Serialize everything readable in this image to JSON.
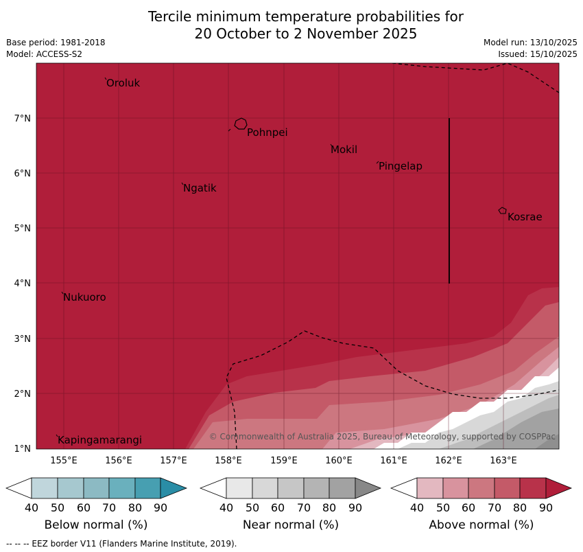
{
  "title_line1": "Tercile minimum temperature probabilities for",
  "title_line2": "20 October to 2 November 2025",
  "base_period": "Base period: 1981-2018",
  "model": "Model: ACCESS-S2",
  "model_run": "Model run: 13/10/2025",
  "issued": "Issued: 15/10/2025",
  "copyright": "© Commonwealth of Australia 2025, Bureau of Meteorology, supported by COSPPac",
  "x_ticks": [
    "155°E",
    "156°E",
    "157°E",
    "158°E",
    "159°E",
    "160°E",
    "161°E",
    "162°E",
    "163°E"
  ],
  "y_ticks": [
    "7°N",
    "6°N",
    "5°N",
    "4°N",
    "3°N",
    "2°N",
    "1°N"
  ],
  "places": [
    {
      "name": "Oroluk",
      "icon": "place-marker"
    },
    {
      "name": "Pohnpei",
      "icon": "island-outline"
    },
    {
      "name": "Mokil",
      "icon": "place-marker"
    },
    {
      "name": "Pingelap",
      "icon": "place-marker"
    },
    {
      "name": "Ngatik",
      "icon": "place-marker"
    },
    {
      "name": "Kosrae",
      "icon": "island-outline"
    },
    {
      "name": "Nukuoro",
      "icon": "place-marker"
    },
    {
      "name": "Kapingamarangi",
      "icon": "place-marker"
    }
  ],
  "colorbars": [
    {
      "title": "Below normal (%)",
      "labels": [
        "40",
        "50",
        "60",
        "70",
        "80",
        "90"
      ],
      "colors": [
        "#ffffff",
        "#c0d6dc",
        "#a6c8cf",
        "#8cbac3",
        "#6ab0bd",
        "#479fb1",
        "#2a8da6"
      ]
    },
    {
      "title": "Near normal (%)",
      "labels": [
        "40",
        "50",
        "60",
        "70",
        "80",
        "90"
      ],
      "colors": [
        "#ffffff",
        "#e8e8e8",
        "#d8d8d8",
        "#c6c6c6",
        "#b4b4b4",
        "#a2a2a2",
        "#888888"
      ]
    },
    {
      "title": "Above normal (%)",
      "labels": [
        "40",
        "50",
        "60",
        "70",
        "80",
        "90"
      ],
      "colors": [
        "#ffffff",
        "#e3b8c0",
        "#d8939e",
        "#cc7780",
        "#c45a68",
        "#b8324a",
        "#b01e3a"
      ]
    }
  ],
  "footer": "--  --  -- EEZ border V11 (Flanders Marine Institute, 2019)."
}
